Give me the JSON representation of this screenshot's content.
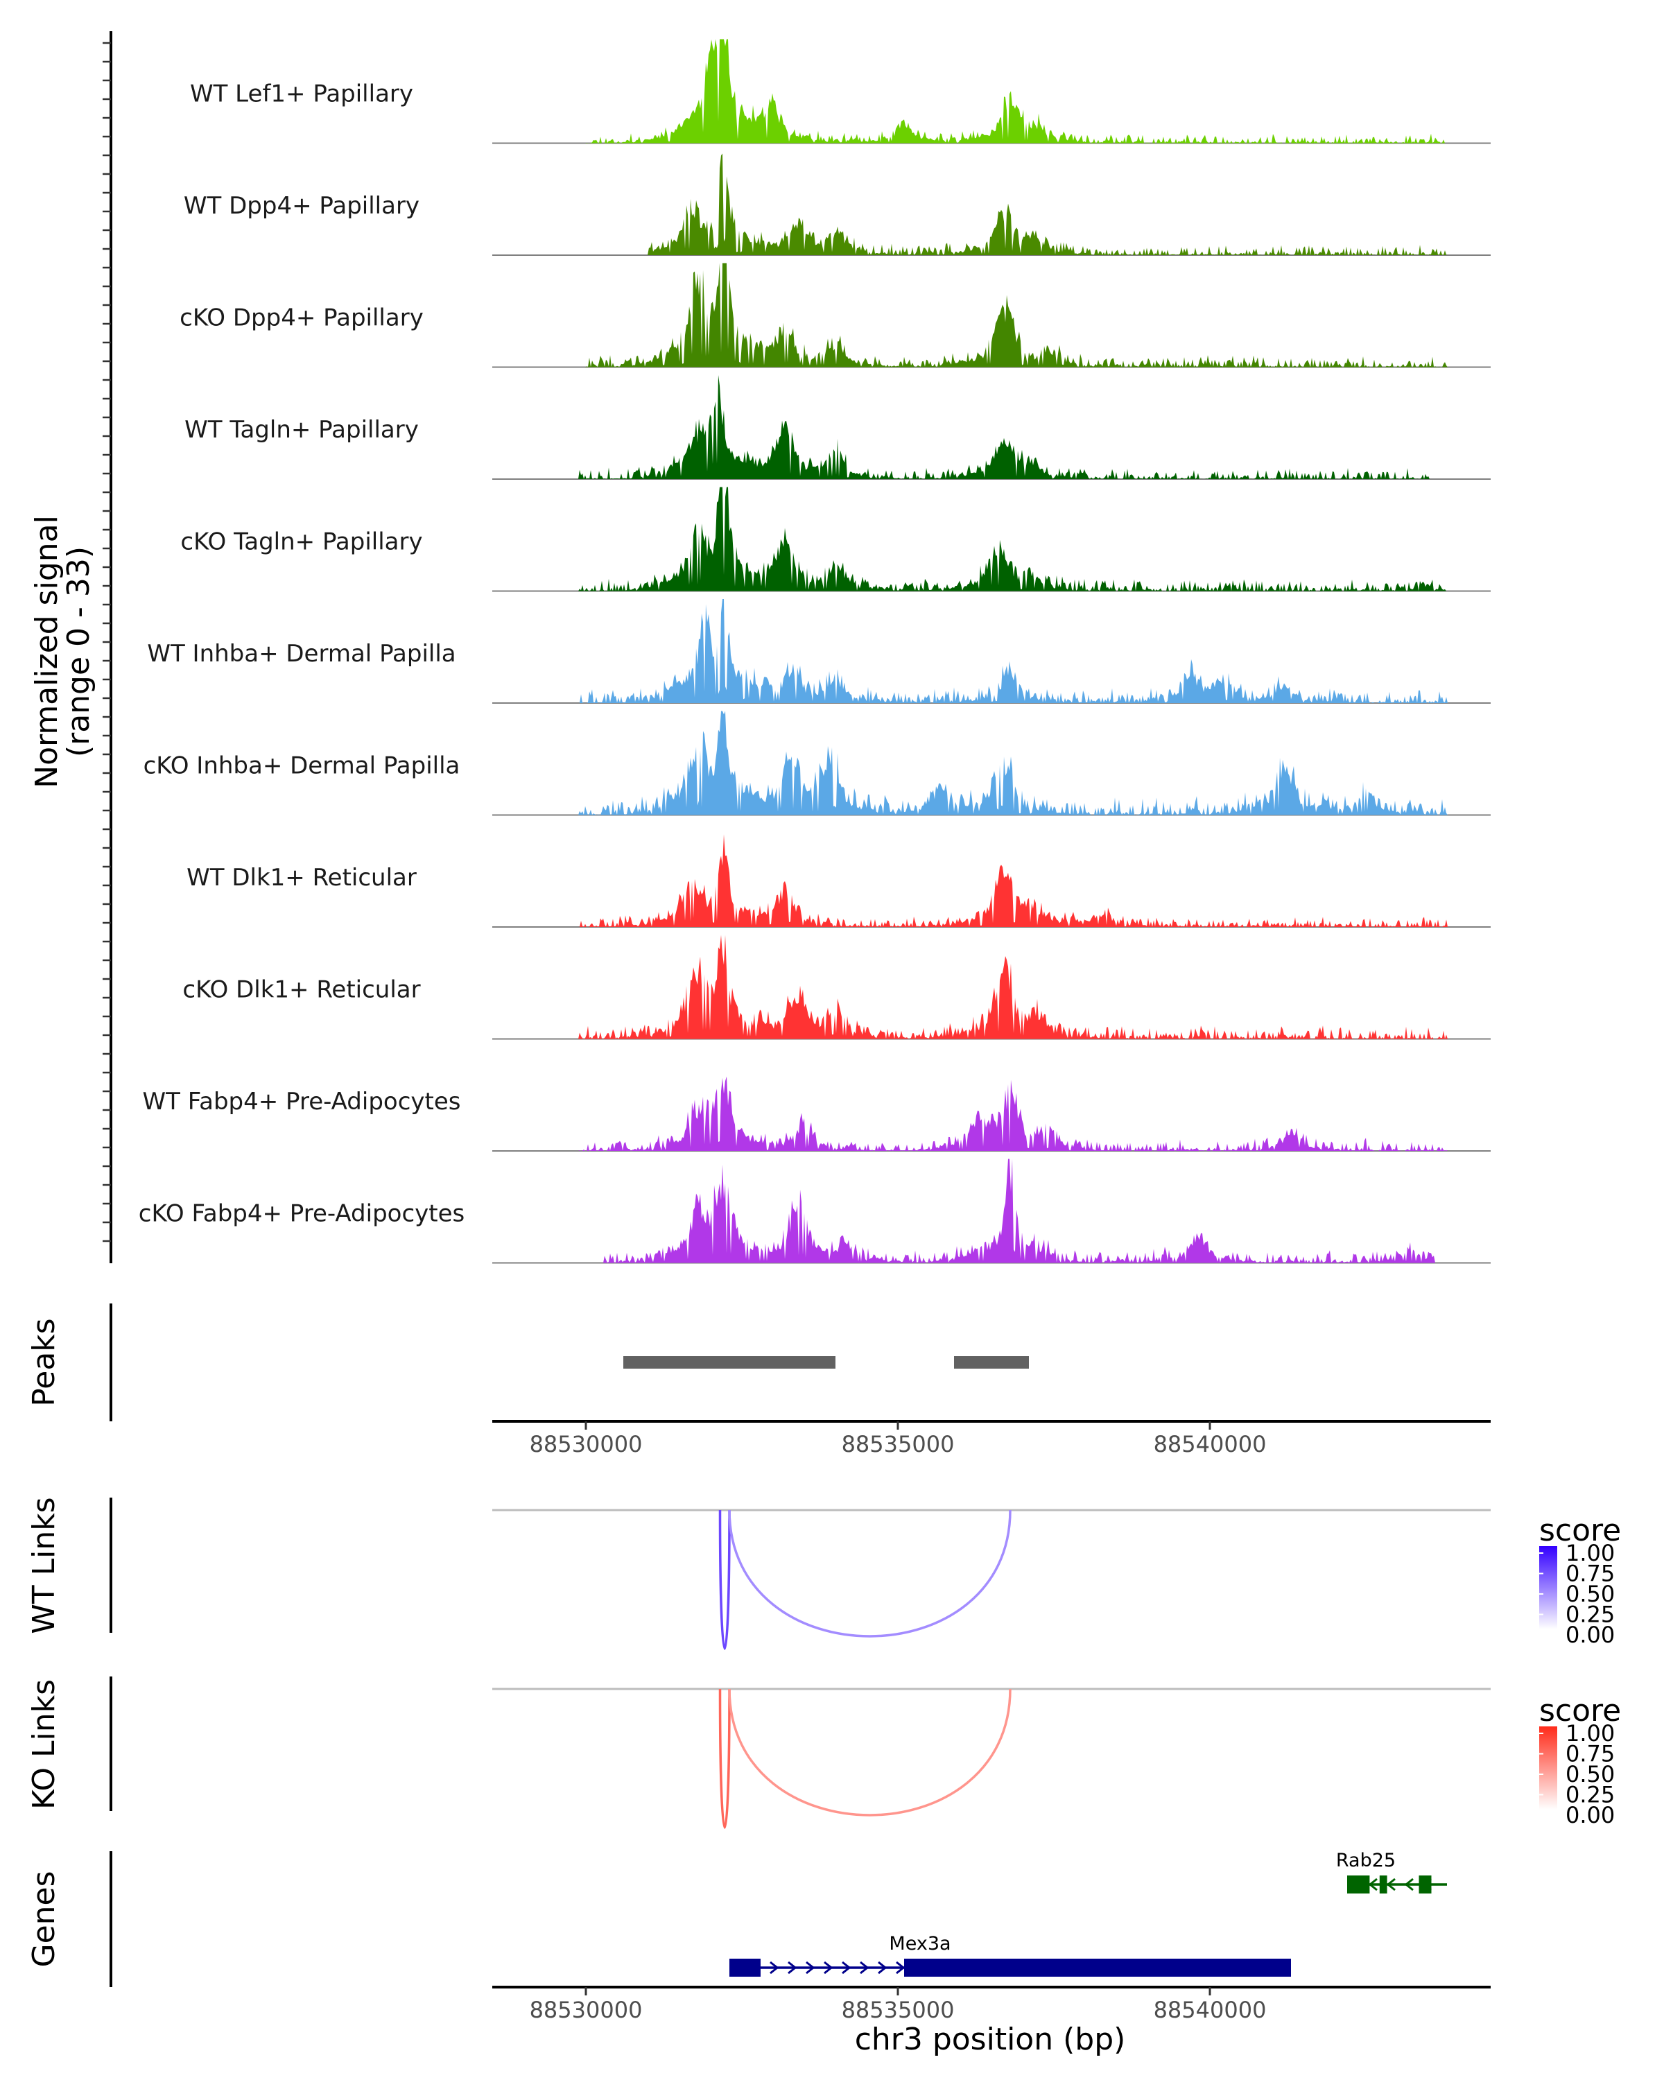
{
  "chart_data": {
    "type": "area",
    "chromosome": "chr3",
    "xlim": [
      88528500,
      88544500
    ],
    "xticks": [
      88530000,
      88535000,
      88540000
    ],
    "xtick_labels": [
      "88530000",
      "88535000",
      "88540000"
    ],
    "xlabel": "chr3 position (bp)",
    "coverage": {
      "ylabel_line1": "Normalized signal",
      "ylabel_line2": "(range 0 - 33)",
      "ylim": [
        0,
        33
      ],
      "tracks": [
        {
          "name": "WT Lef1+ Papillary",
          "color": "#6CD000",
          "peaks": [
            [
              88532000,
              13
            ],
            [
              88532200,
              29
            ],
            [
              88533000,
              7
            ],
            [
              88535100,
              4
            ],
            [
              88536800,
              10
            ],
            [
              88537200,
              3
            ]
          ],
          "noise": 1.2,
          "start": 88530000,
          "end": 88543800
        },
        {
          "name": "WT Dpp4+ Papillary",
          "color": "#4A8A00",
          "peaks": [
            [
              88531700,
              8
            ],
            [
              88532200,
              24
            ],
            [
              88533400,
              7
            ],
            [
              88534000,
              5
            ],
            [
              88536700,
              10
            ],
            [
              88537200,
              3
            ]
          ],
          "noise": 1.3,
          "start": 88531000,
          "end": 88543800
        },
        {
          "name": "cKO Dpp4+ Papillary",
          "color": "#438600",
          "peaks": [
            [
              88531800,
              17
            ],
            [
              88532200,
              31
            ],
            [
              88533200,
              8
            ],
            [
              88534000,
              5
            ],
            [
              88536700,
              15
            ],
            [
              88537500,
              3
            ]
          ],
          "noise": 1.4,
          "start": 88530000,
          "end": 88543800
        },
        {
          "name": "WT Tagln+ Papillary",
          "color": "#006100",
          "peaks": [
            [
              88531800,
              8
            ],
            [
              88532100,
              23
            ],
            [
              88533200,
              11
            ],
            [
              88534000,
              6
            ],
            [
              88536700,
              9
            ],
            [
              88537100,
              3
            ]
          ],
          "noise": 1.4,
          "start": 88529900,
          "end": 88543500
        },
        {
          "name": "cKO Tagln+ Papillary",
          "color": "#006100",
          "peaks": [
            [
              88531800,
              10
            ],
            [
              88532200,
              29
            ],
            [
              88533200,
              10
            ],
            [
              88534000,
              5
            ],
            [
              88536600,
              11
            ],
            [
              88537100,
              3
            ]
          ],
          "noise": 1.6,
          "start": 88529900,
          "end": 88543800
        },
        {
          "name": "WT Inhba+ Dermal Papilla",
          "color": "#5BA8E6",
          "peaks": [
            [
              88531900,
              20
            ],
            [
              88532200,
              22
            ],
            [
              88533300,
              7
            ],
            [
              88534000,
              5
            ],
            [
              88536800,
              7
            ],
            [
              88539700,
              6
            ],
            [
              88540200,
              5
            ],
            [
              88541200,
              4
            ]
          ],
          "noise": 1.8,
          "start": 88529900,
          "end": 88543800
        },
        {
          "name": "cKO Inhba+ Dermal Papilla",
          "color": "#5BA8E6",
          "peaks": [
            [
              88531800,
              15
            ],
            [
              88532200,
              22
            ],
            [
              88533300,
              12
            ],
            [
              88533900,
              13
            ],
            [
              88535700,
              6
            ],
            [
              88536700,
              13
            ],
            [
              88541200,
              12
            ],
            [
              88542500,
              5
            ]
          ],
          "noise": 2.2,
          "start": 88529900,
          "end": 88543800
        },
        {
          "name": "WT Dlk1+ Reticular",
          "color": "#FF3333",
          "peaks": [
            [
              88531700,
              9
            ],
            [
              88532200,
              19
            ],
            [
              88533200,
              8
            ],
            [
              88536700,
              13
            ],
            [
              88537100,
              4
            ],
            [
              88538300,
              3
            ]
          ],
          "noise": 1.3,
          "start": 88529900,
          "end": 88543800
        },
        {
          "name": "cKO Dlk1+ Reticular",
          "color": "#FF3333",
          "peaks": [
            [
              88531800,
              14
            ],
            [
              88532200,
              22
            ],
            [
              88533400,
              11
            ],
            [
              88534000,
              6
            ],
            [
              88536700,
              17
            ],
            [
              88537200,
              4
            ]
          ],
          "noise": 1.7,
          "start": 88529900,
          "end": 88543800
        },
        {
          "name": "WT Fabp4+ Pre-Adipocytes",
          "color": "#B138E8",
          "peaks": [
            [
              88531800,
              8
            ],
            [
              88532200,
              15
            ],
            [
              88533500,
              6
            ],
            [
              88536300,
              7
            ],
            [
              88536800,
              13
            ],
            [
              88537400,
              4
            ],
            [
              88541300,
              4
            ]
          ],
          "noise": 1.5,
          "start": 88529900,
          "end": 88543800
        },
        {
          "name": "cKO Fabp4+ Pre-Adipocytes",
          "color": "#B138E8",
          "peaks": [
            [
              88531800,
              10
            ],
            [
              88532200,
              18
            ],
            [
              88533400,
              13
            ],
            [
              88534200,
              4
            ],
            [
              88536800,
              24
            ],
            [
              88539800,
              6
            ],
            [
              88543200,
              3
            ]
          ],
          "noise": 1.6,
          "start": 88530300,
          "end": 88543600
        }
      ]
    },
    "peaks_track": {
      "label": "Peaks",
      "color": "#616161",
      "regions": [
        [
          88530600,
          88534000
        ],
        [
          88535900,
          88537100
        ]
      ]
    },
    "link_tracks": [
      {
        "label": "WT Links",
        "legend_title": "score",
        "legend_ticks": [
          "1.00",
          "0.75",
          "0.50",
          "0.25",
          "0.00"
        ],
        "low_color": "#FFFFFF",
        "high_color": "#3300FF",
        "links": [
          {
            "start": 88532150,
            "end": 88532300,
            "score": 0.72
          },
          {
            "start": 88532300,
            "end": 88536800,
            "score": 0.45
          }
        ]
      },
      {
        "label": "KO Links",
        "legend_title": "score",
        "legend_ticks": [
          "1.00",
          "0.75",
          "0.50",
          "0.25",
          "0.00"
        ],
        "low_color": "#FFFFFF",
        "high_color": "#FF2B1A",
        "links": [
          {
            "start": 88532150,
            "end": 88532300,
            "score": 0.72
          },
          {
            "start": 88532300,
            "end": 88536800,
            "score": 0.5
          }
        ]
      }
    ],
    "genes_track": {
      "label": "Genes",
      "genes": [
        {
          "name": "Mex3a",
          "strand": "+",
          "color": "#00008B",
          "start": 88532300,
          "end": 88541300,
          "exons": [
            [
              88532300,
              88532800
            ],
            [
              88535100,
              88541300
            ]
          ]
        },
        {
          "name": "Rab25",
          "strand": "-",
          "color": "#006400",
          "start": 88542200,
          "end": 88543800,
          "exons": [
            [
              88542200,
              88542560
            ],
            [
              88542720,
              88542840
            ],
            [
              88543350,
              88543550
            ]
          ]
        }
      ]
    }
  }
}
